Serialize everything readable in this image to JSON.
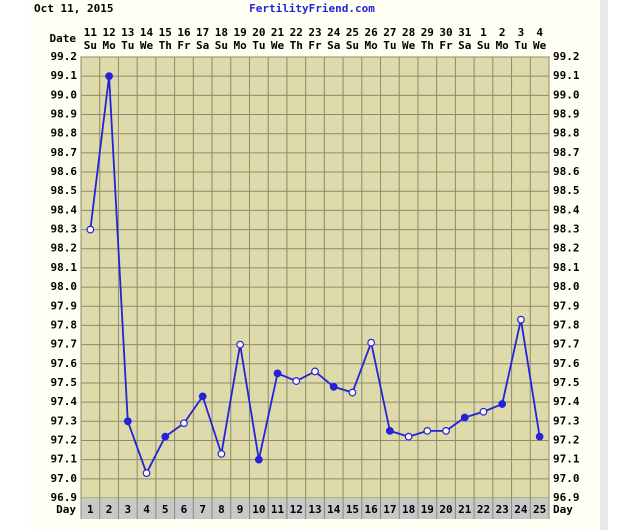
{
  "chart_data": {
    "type": "line",
    "date": "Oct 11, 2015",
    "title": "FertilityFriend.com",
    "date_label": "Date",
    "day_label": "Day",
    "categories": [
      "11",
      "12",
      "13",
      "14",
      "15",
      "16",
      "17",
      "18",
      "19",
      "20",
      "21",
      "22",
      "23",
      "24",
      "25",
      "26",
      "27",
      "28",
      "29",
      "30",
      "31",
      "1",
      "2",
      "3",
      "4"
    ],
    "weekdays": [
      "Su",
      "Mo",
      "Tu",
      "We",
      "Th",
      "Fr",
      "Sa",
      "Su",
      "Mo",
      "Tu",
      "We",
      "Th",
      "Fr",
      "Sa",
      "Su",
      "Mo",
      "Tu",
      "We",
      "Th",
      "Fr",
      "Sa",
      "Su",
      "Mo",
      "Tu",
      "We"
    ],
    "days": [
      1,
      2,
      3,
      4,
      5,
      6,
      7,
      8,
      9,
      10,
      11,
      12,
      13,
      14,
      15,
      16,
      17,
      18,
      19,
      20,
      21,
      22,
      23,
      24,
      25
    ],
    "values": [
      98.3,
      99.1,
      97.3,
      97.03,
      97.22,
      97.29,
      97.43,
      97.13,
      97.7,
      97.1,
      97.55,
      97.51,
      97.56,
      97.48,
      97.45,
      97.71,
      97.25,
      97.22,
      97.25,
      97.25,
      97.32,
      97.35,
      97.39,
      97.83,
      97.22
    ],
    "markers": [
      "open",
      "filled",
      "filled",
      "open",
      "filled",
      "open",
      "filled",
      "open",
      "open",
      "filled",
      "filled",
      "open",
      "open",
      "filled",
      "open",
      "open",
      "filled",
      "open",
      "open",
      "open",
      "filled",
      "open",
      "filled",
      "open",
      "filled"
    ],
    "color": "#2323d8",
    "ylim": [
      96.9,
      99.2
    ],
    "yticks": [
      96.9,
      {
        "value": 97,
        "label": "97.0"
      },
      97.1,
      97.2,
      97.3,
      97.4,
      97.5,
      97.6,
      97.7,
      97.8,
      97.9,
      {
        "value": 98,
        "label": "98.0"
      },
      98.1,
      98.2,
      98.3,
      98.4,
      98.5,
      98.6,
      98.7,
      98.8,
      98.9,
      {
        "value": 99,
        "label": "99.0"
      },
      99.1,
      99.2
    ],
    "grid": true
  }
}
